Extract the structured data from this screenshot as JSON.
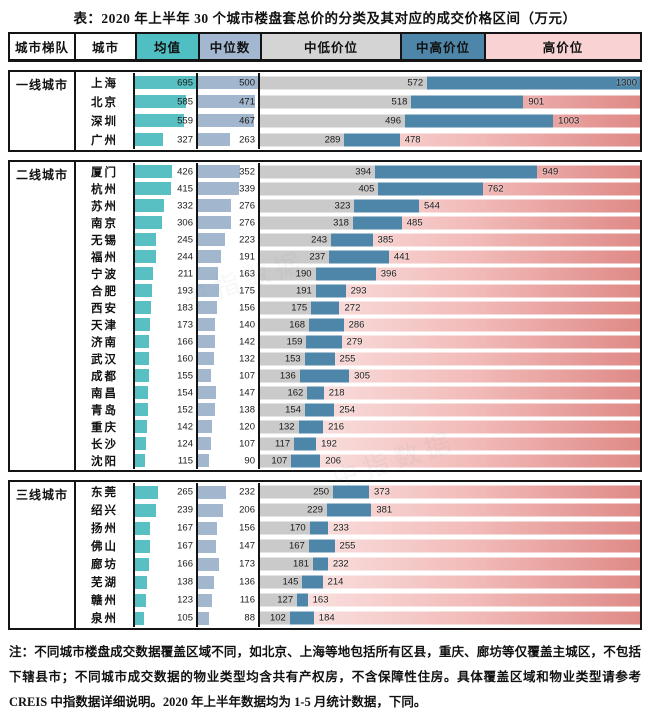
{
  "title": "表：2020 年上半年 30 个城市楼盘套总价的分类及其对应的成交价格区间（万元）",
  "watermark_text": "中指数据",
  "notes": "注：不同城市楼盘成交数据覆盖区域不同，如北京、上海等地包括所有区县，重庆、廊坊等仅覆盖主城区，不包括下辖县市；不同城市成交数据的物业类型均含共有产权房，不含保障性住房。具体覆盖区域和物业类型请参考 CREIS 中指数据详细说明。2020 年上半年数据均为 1-5 月统计数据，下同。",
  "colors": {
    "border": "#141414",
    "mean_bar": "#58c0c3",
    "median_bar": "#a2b7ce",
    "low_bar": "#cacaca",
    "midhigh_bar": "#4d86a8",
    "high_grad_start": "#fbeae9",
    "high_grad_end": "#df8a87",
    "header_mean": "#4fbfc3",
    "header_median": "#a3b8d0",
    "header_low": "#d4d4d4",
    "header_midhigh": "#4d86a8",
    "header_high": "#f9d2d4"
  },
  "chart_data": {
    "type": "table",
    "title": "2020 年上半年 30 个城市楼盘套总价的分类及其对应的成交价格区间",
    "unit": "万元",
    "columns": [
      "城市梯队",
      "城市",
      "均值",
      "中位数",
      "中低价位",
      "中高价位",
      "高价位"
    ],
    "scales": {
      "mean_max": 700,
      "median_max": 500,
      "price_max": 1300
    },
    "legend_note": "灰色条=中低价位上限，蓝色条=中高价位上限，粉色=高价位区间",
    "tiers": [
      {
        "name": "一线城市",
        "cities": [
          {
            "name": "上海",
            "mean": 695,
            "median": 500,
            "low": 572,
            "high": 1300
          },
          {
            "name": "北京",
            "mean": 585,
            "median": 471,
            "low": 518,
            "high": 901
          },
          {
            "name": "深圳",
            "mean": 559,
            "median": 467,
            "low": 496,
            "high": 1003
          },
          {
            "name": "广州",
            "mean": 327,
            "median": 263,
            "low": 289,
            "high": 478
          }
        ]
      },
      {
        "name": "二线城市",
        "cities": [
          {
            "name": "厦门",
            "mean": 426,
            "median": 352,
            "low": 394,
            "high": 949
          },
          {
            "name": "杭州",
            "mean": 415,
            "median": 339,
            "low": 405,
            "high": 762
          },
          {
            "name": "苏州",
            "mean": 332,
            "median": 276,
            "low": 323,
            "high": 544
          },
          {
            "name": "南京",
            "mean": 306,
            "median": 276,
            "low": 318,
            "high": 485
          },
          {
            "name": "无锡",
            "mean": 245,
            "median": 223,
            "low": 243,
            "high": 385
          },
          {
            "name": "福州",
            "mean": 244,
            "median": 191,
            "low": 237,
            "high": 441
          },
          {
            "name": "宁波",
            "mean": 211,
            "median": 163,
            "low": 190,
            "high": 396
          },
          {
            "name": "合肥",
            "mean": 193,
            "median": 175,
            "low": 191,
            "high": 293
          },
          {
            "name": "西安",
            "mean": 183,
            "median": 156,
            "low": 175,
            "high": 272
          },
          {
            "name": "天津",
            "mean": 173,
            "median": 140,
            "low": 168,
            "high": 286
          },
          {
            "name": "济南",
            "mean": 166,
            "median": 142,
            "low": 159,
            "high": 279
          },
          {
            "name": "武汉",
            "mean": 160,
            "median": 132,
            "low": 153,
            "high": 255
          },
          {
            "name": "成都",
            "mean": 155,
            "median": 107,
            "low": 136,
            "high": 305
          },
          {
            "name": "南昌",
            "mean": 154,
            "median": 147,
            "low": 162,
            "high": 218
          },
          {
            "name": "青岛",
            "mean": 152,
            "median": 138,
            "low": 154,
            "high": 254
          },
          {
            "name": "重庆",
            "mean": 142,
            "median": 120,
            "low": 132,
            "high": 216
          },
          {
            "name": "长沙",
            "mean": 124,
            "median": 107,
            "low": 117,
            "high": 192
          },
          {
            "name": "沈阳",
            "mean": 115,
            "median": 90,
            "low": 107,
            "high": 206
          }
        ]
      },
      {
        "name": "三线城市",
        "cities": [
          {
            "name": "东莞",
            "mean": 265,
            "median": 232,
            "low": 250,
            "high": 373
          },
          {
            "name": "绍兴",
            "mean": 239,
            "median": 206,
            "low": 229,
            "high": 381
          },
          {
            "name": "扬州",
            "mean": 167,
            "median": 156,
            "low": 170,
            "high": 233
          },
          {
            "name": "佛山",
            "mean": 167,
            "median": 147,
            "low": 167,
            "high": 255
          },
          {
            "name": "廊坊",
            "mean": 166,
            "median": 173,
            "low": 181,
            "high": 232
          },
          {
            "name": "芜湖",
            "mean": 138,
            "median": 136,
            "low": 145,
            "high": 214
          },
          {
            "name": "赣州",
            "mean": 123,
            "median": 116,
            "low": 127,
            "high": 163
          },
          {
            "name": "泉州",
            "mean": 105,
            "median": 88,
            "low": 102,
            "high": 184
          }
        ]
      }
    ]
  }
}
